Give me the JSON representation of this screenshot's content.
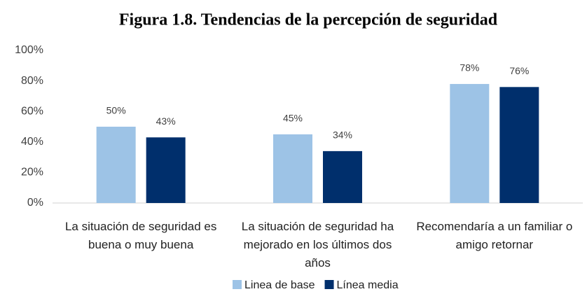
{
  "chart_data": {
    "type": "bar",
    "title": "Figura 1.8. Tendencias de la percepción de seguridad",
    "categories": [
      "La situación de seguridad es buena o muy buena",
      "La situación de seguridad ha mejorado en los últimos dos años",
      "Recomendaría a un familiar o amigo retornar"
    ],
    "series": [
      {
        "name": "Linea de base",
        "color": "#9dc3e6",
        "values": [
          50,
          45,
          78
        ],
        "value_labels": [
          "50%",
          "45%",
          "78%"
        ]
      },
      {
        "name": "Línea media",
        "color": "#002f6c",
        "values": [
          43,
          34,
          76
        ],
        "value_labels": [
          "43%",
          "34%",
          "76%"
        ]
      }
    ],
    "ylim": [
      0,
      100
    ],
    "yticks": [
      {
        "value": 0,
        "label": "0%"
      },
      {
        "value": 20,
        "label": "20%"
      },
      {
        "value": 40,
        "label": "40%"
      },
      {
        "value": 60,
        "label": "60%"
      },
      {
        "value": 80,
        "label": "80%"
      },
      {
        "value": 100,
        "label": "100%"
      }
    ],
    "grid": false,
    "legend": "bottom"
  }
}
